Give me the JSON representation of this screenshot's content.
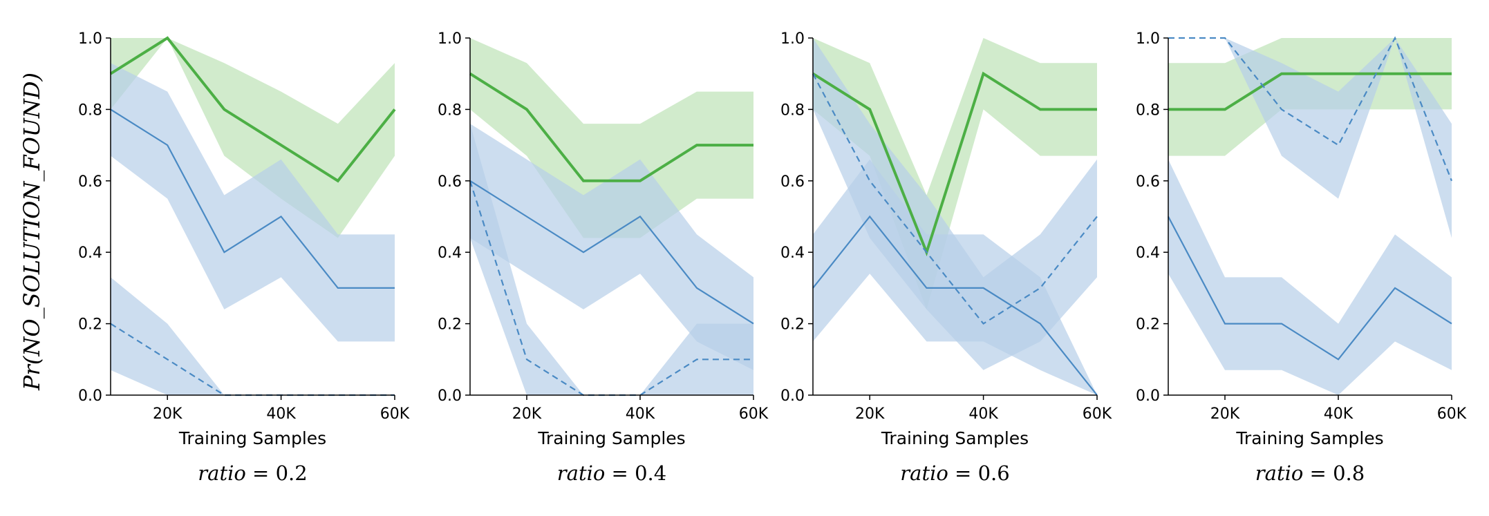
{
  "figure": {
    "ylabel": "Pr(NO_SOLUTION_FOUND)",
    "colors": {
      "green": "#4caf45",
      "blue": "#4a8ac4",
      "green_band": "#c9e7c3",
      "blue_band": "#b7cfe8"
    }
  },
  "chart_data": [
    {
      "type": "line",
      "caption": "ratio = 0.2",
      "xlabel": "Training Samples",
      "xlim": [
        10000,
        60000
      ],
      "ylim": [
        0,
        1
      ],
      "xticks": [
        20000,
        40000,
        60000
      ],
      "xtick_labels": [
        "20K",
        "40K",
        "60K"
      ],
      "yticks": [
        0,
        0.2,
        0.4,
        0.6,
        0.8,
        1.0
      ],
      "ytick_labels": [
        "0.0",
        "0.2",
        "0.4",
        "0.6",
        "0.8",
        "1.0"
      ],
      "x": [
        10000,
        20000,
        30000,
        40000,
        50000,
        60000
      ],
      "series": [
        {
          "style": "green-thick",
          "values": [
            0.9,
            1.0,
            0.8,
            0.7,
            0.6,
            0.8
          ],
          "lower": [
            0.8,
            1.0,
            0.67,
            0.55,
            0.44,
            0.67
          ],
          "upper": [
            1.0,
            1.0,
            0.93,
            0.85,
            0.76,
            0.93
          ]
        },
        {
          "style": "blue-solid",
          "values": [
            0.8,
            0.7,
            0.4,
            0.5,
            0.3,
            0.3
          ],
          "lower": [
            0.67,
            0.55,
            0.24,
            0.33,
            0.15,
            0.15
          ],
          "upper": [
            0.93,
            0.85,
            0.56,
            0.66,
            0.45,
            0.45
          ]
        },
        {
          "style": "blue-dashed",
          "values": [
            0.2,
            0.1,
            0.0,
            0.0,
            0.0,
            0.0
          ],
          "lower": [
            0.07,
            0.0,
            0.0,
            0.0,
            0.0,
            0.0
          ],
          "upper": [
            0.33,
            0.2,
            0.0,
            0.0,
            0.0,
            0.0
          ]
        }
      ]
    },
    {
      "type": "line",
      "caption": "ratio = 0.4",
      "xlabel": "Training Samples",
      "xlim": [
        10000,
        60000
      ],
      "ylim": [
        0,
        1
      ],
      "xticks": [
        20000,
        40000,
        60000
      ],
      "xtick_labels": [
        "20K",
        "40K",
        "60K"
      ],
      "yticks": [
        0,
        0.2,
        0.4,
        0.6,
        0.8,
        1.0
      ],
      "ytick_labels": [
        "0.0",
        "0.2",
        "0.4",
        "0.6",
        "0.8",
        "1.0"
      ],
      "x": [
        10000,
        20000,
        30000,
        40000,
        50000,
        60000
      ],
      "series": [
        {
          "style": "green-thick",
          "values": [
            0.9,
            0.8,
            0.6,
            0.6,
            0.7,
            0.7
          ],
          "lower": [
            0.8,
            0.67,
            0.44,
            0.44,
            0.55,
            0.55
          ],
          "upper": [
            1.0,
            0.93,
            0.76,
            0.76,
            0.85,
            0.85
          ]
        },
        {
          "style": "blue-solid",
          "values": [
            0.6,
            0.5,
            0.4,
            0.5,
            0.3,
            0.2
          ],
          "lower": [
            0.44,
            0.34,
            0.24,
            0.34,
            0.15,
            0.07
          ],
          "upper": [
            0.76,
            0.66,
            0.56,
            0.66,
            0.45,
            0.33
          ]
        },
        {
          "style": "blue-dashed",
          "values": [
            0.6,
            0.1,
            0.0,
            0.0,
            0.1,
            0.1
          ],
          "lower": [
            0.44,
            0.0,
            0.0,
            0.0,
            0.0,
            0.0
          ],
          "upper": [
            0.76,
            0.2,
            0.0,
            0.0,
            0.2,
            0.2
          ]
        }
      ]
    },
    {
      "type": "line",
      "caption": "ratio = 0.6",
      "xlabel": "Training Samples",
      "xlim": [
        10000,
        60000
      ],
      "ylim": [
        0,
        1
      ],
      "xticks": [
        20000,
        40000,
        60000
      ],
      "xtick_labels": [
        "20K",
        "40K",
        "60K"
      ],
      "yticks": [
        0,
        0.2,
        0.4,
        0.6,
        0.8,
        1.0
      ],
      "ytick_labels": [
        "0.0",
        "0.2",
        "0.4",
        "0.6",
        "0.8",
        "1.0"
      ],
      "x": [
        10000,
        20000,
        30000,
        40000,
        50000,
        60000
      ],
      "series": [
        {
          "style": "green-thick",
          "values": [
            0.9,
            0.8,
            0.4,
            0.9,
            0.8,
            0.8
          ],
          "lower": [
            0.8,
            0.67,
            0.24,
            0.8,
            0.67,
            0.67
          ],
          "upper": [
            1.0,
            0.93,
            0.56,
            1.0,
            0.93,
            0.93
          ]
        },
        {
          "style": "blue-solid",
          "values": [
            0.3,
            0.5,
            0.3,
            0.3,
            0.2,
            0.0
          ],
          "lower": [
            0.15,
            0.34,
            0.15,
            0.15,
            0.07,
            0.0
          ],
          "upper": [
            0.45,
            0.66,
            0.45,
            0.45,
            0.33,
            0.0
          ]
        },
        {
          "style": "blue-dashed",
          "values": [
            0.9,
            0.6,
            0.4,
            0.2,
            0.3,
            0.5
          ],
          "lower": [
            0.8,
            0.44,
            0.24,
            0.07,
            0.15,
            0.33
          ],
          "upper": [
            1.0,
            0.76,
            0.56,
            0.33,
            0.45,
            0.66
          ]
        }
      ]
    },
    {
      "type": "line",
      "caption": "ratio = 0.8",
      "xlabel": "Training Samples",
      "xlim": [
        10000,
        60000
      ],
      "ylim": [
        0,
        1
      ],
      "xticks": [
        20000,
        40000,
        60000
      ],
      "xtick_labels": [
        "20K",
        "40K",
        "60K"
      ],
      "yticks": [
        0,
        0.2,
        0.4,
        0.6,
        0.8,
        1.0
      ],
      "ytick_labels": [
        "0.0",
        "0.2",
        "0.4",
        "0.6",
        "0.8",
        "1.0"
      ],
      "x": [
        10000,
        20000,
        30000,
        40000,
        50000,
        60000
      ],
      "series": [
        {
          "style": "green-thick",
          "values": [
            0.8,
            0.8,
            0.9,
            0.9,
            0.9,
            0.9
          ],
          "lower": [
            0.67,
            0.67,
            0.8,
            0.8,
            0.8,
            0.8
          ],
          "upper": [
            0.93,
            0.93,
            1.0,
            1.0,
            1.0,
            1.0
          ]
        },
        {
          "style": "blue-solid",
          "values": [
            0.5,
            0.2,
            0.2,
            0.1,
            0.3,
            0.2
          ],
          "lower": [
            0.34,
            0.07,
            0.07,
            0.0,
            0.15,
            0.07
          ],
          "upper": [
            0.66,
            0.33,
            0.33,
            0.2,
            0.45,
            0.33
          ]
        },
        {
          "style": "blue-dashed",
          "values": [
            1.0,
            1.0,
            0.8,
            0.7,
            1.0,
            0.6
          ],
          "lower": [
            1.0,
            1.0,
            0.67,
            0.55,
            1.0,
            0.44
          ],
          "upper": [
            1.0,
            1.0,
            0.93,
            0.85,
            1.0,
            0.76
          ]
        }
      ]
    }
  ]
}
